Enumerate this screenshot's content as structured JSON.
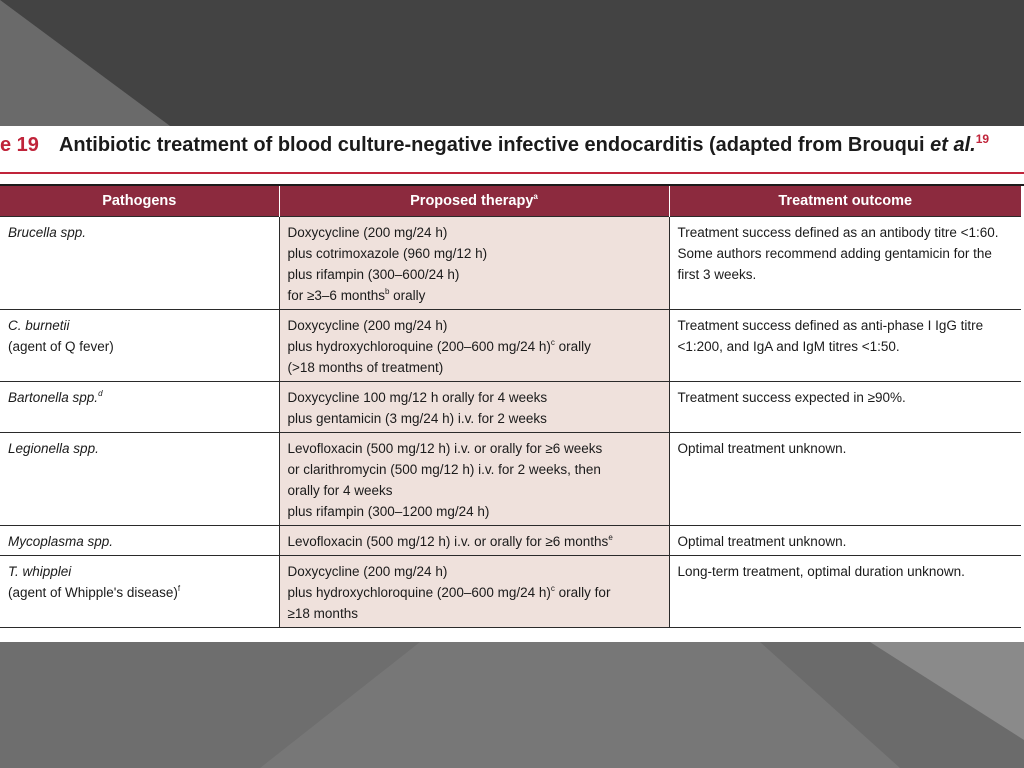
{
  "caption": {
    "number": "e 19",
    "title_main": "Antibiotic treatment of blood culture-negative infective endocarditis (adapted from Brouqui ",
    "title_etal": "et al.",
    "ref": "19"
  },
  "table": {
    "headers": {
      "pathogens": "Pathogens",
      "therapy": "Proposed therapy",
      "therapy_sup": "a",
      "outcome": "Treatment outcome"
    },
    "rows": [
      {
        "pathogen": "Brucella spp.",
        "therapy": [
          {
            "t": "Doxycycline (200 mg/24 h)"
          },
          {
            "t": "plus cotrimoxazole (960 mg/12 h)"
          },
          {
            "t": "plus rifampin (300–600/24 h)"
          },
          {
            "t": "for ≥3–6 months",
            "sup": "b",
            "after": " orally"
          }
        ],
        "outcome": [
          "Treatment success defined as an antibody titre <1:60.",
          "Some authors recommend adding gentamicin for the",
          "first 3 weeks."
        ]
      },
      {
        "pathogen": "C. burnetii",
        "pathogen_note": "(agent of Q fever)",
        "therapy": [
          {
            "t": "Doxycycline (200 mg/24 h)"
          },
          {
            "t": "plus hydroxychloroquine (200–600 mg/24 h)",
            "sup": "c",
            "after": " orally"
          },
          {
            "t": "(>18 months of treatment)"
          }
        ],
        "outcome": [
          "Treatment success defined as anti-phase I IgG titre",
          "<1:200, and IgA and IgM titres <1:50."
        ]
      },
      {
        "pathogen": "Bartonella spp.",
        "pathogen_sup": "d",
        "therapy": [
          {
            "t": "Doxycycline 100 mg/12 h orally for 4 weeks"
          },
          {
            "t": "plus gentamicin (3 mg/24 h) i.v. for 2 weeks"
          }
        ],
        "outcome": [
          "Treatment success expected in ≥90%."
        ]
      },
      {
        "pathogen": "Legionella spp.",
        "therapy": [
          {
            "t": "Levofloxacin (500 mg/12 h) i.v. or orally for ≥6 weeks"
          },
          {
            "t": "or clarithromycin (500 mg/12 h) i.v. for 2 weeks, then"
          },
          {
            "t": "orally for 4 weeks"
          },
          {
            "t": "plus rifampin (300–1200 mg/24 h)"
          }
        ],
        "outcome": [
          "Optimal treatment unknown."
        ]
      },
      {
        "pathogen": "Mycoplasma spp.",
        "therapy": [
          {
            "t": "Levofloxacin (500 mg/12 h) i.v. or orally for ≥6 months",
            "sup": "e"
          }
        ],
        "outcome": [
          "Optimal treatment unknown."
        ]
      },
      {
        "pathogen": "T. whipplei",
        "pathogen_note": "(agent of Whipple's disease)",
        "pathogen_note_sup": "f",
        "therapy": [
          {
            "t": "Doxycycline (200 mg/24 h)"
          },
          {
            "t": "plus hydroxychloroquine (200–600 mg/24 h)",
            "sup": "c",
            "after": " orally for"
          },
          {
            "t": "≥18 months"
          }
        ],
        "outcome": [
          "Long-term treatment, optimal duration unknown."
        ]
      }
    ]
  },
  "colors": {
    "header_bg": "#8c2a3e",
    "accent": "#c0243a",
    "therapy_bg": "#efe1dc",
    "slide_bg": "#5e5e5e"
  }
}
